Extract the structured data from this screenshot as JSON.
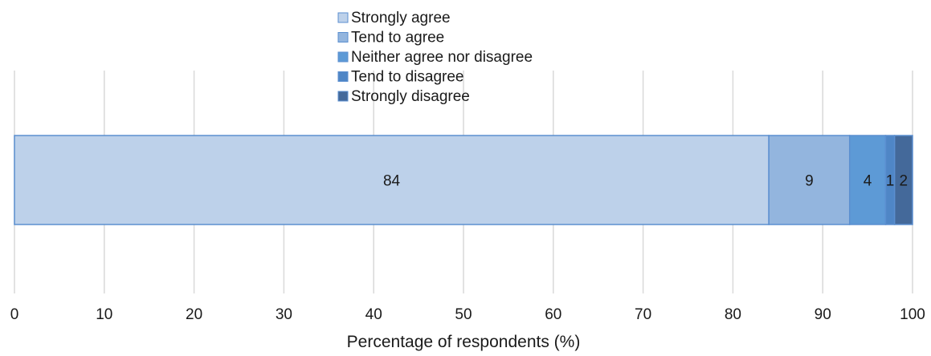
{
  "chart_data": {
    "type": "bar",
    "orientation": "horizontal",
    "stacked": true,
    "categories": [
      ""
    ],
    "series": [
      {
        "name": "Strongly agree",
        "values": [
          84
        ],
        "color": "#bdd1ea"
      },
      {
        "name": "Tend to agree",
        "values": [
          9
        ],
        "color": "#93b5de"
      },
      {
        "name": "Neither agree nor disagree",
        "values": [
          4
        ],
        "color": "#5d9ad6"
      },
      {
        "name": "Tend to disagree",
        "values": [
          1
        ],
        "color": "#4f86c6"
      },
      {
        "name": "Strongly disagree",
        "values": [
          2
        ],
        "color": "#44699a"
      }
    ],
    "data_labels": [
      "84",
      "9",
      "4",
      "1",
      "2"
    ],
    "xlim": [
      0,
      100
    ],
    "xticks": [
      0,
      10,
      20,
      30,
      40,
      50,
      60,
      70,
      80,
      90,
      100
    ],
    "xlabel": "Percentage of respondents (%)",
    "ylabel": "",
    "title": "",
    "grid": "vertical",
    "legend_position": "top-center"
  }
}
